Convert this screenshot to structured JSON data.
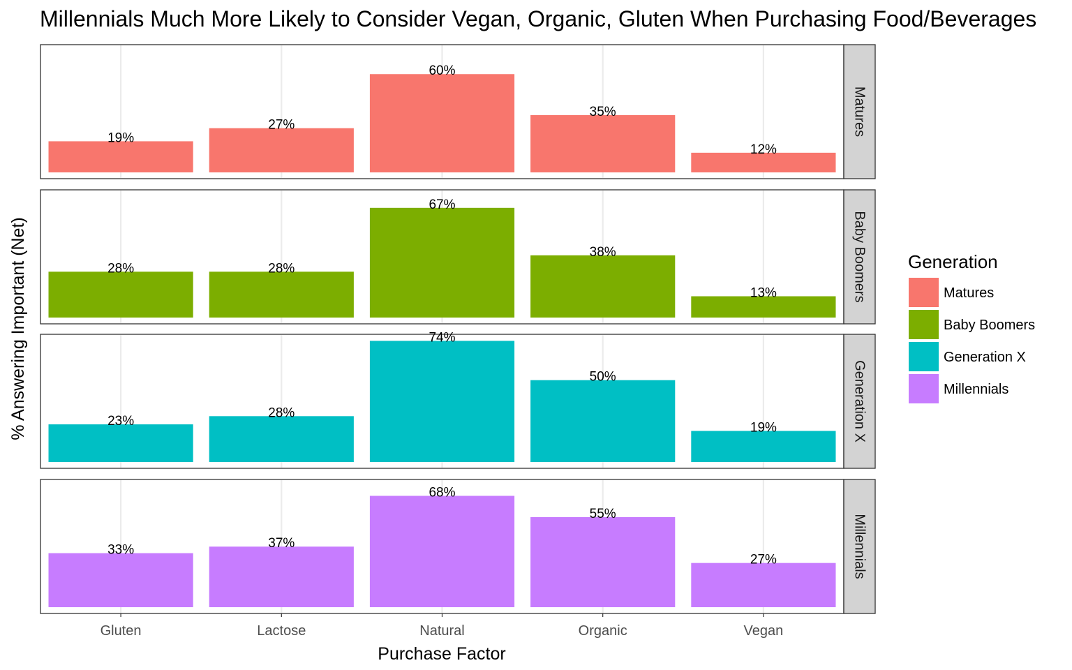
{
  "chart_data": {
    "type": "bar",
    "title": "Millennials Much More Likely to Consider Vegan, Organic, Gluten When Purchasing Food/Beverages",
    "xlabel": "Purchase Factor",
    "ylabel": "% Answering Important (Net)",
    "categories": [
      "Gluten",
      "Lactose",
      "Natural",
      "Organic",
      "Vegan"
    ],
    "ylim": [
      0,
      80
    ],
    "grid": true,
    "facet": "rows",
    "series": [
      {
        "name": "Matures",
        "color": "#F8766D",
        "values": [
          19,
          27,
          60,
          35,
          12
        ],
        "labels": [
          "19%",
          "27%",
          "60%",
          "35%",
          "12%"
        ]
      },
      {
        "name": "Baby Boomers",
        "color": "#7CAE00",
        "values": [
          28,
          28,
          67,
          38,
          13
        ],
        "labels": [
          "28%",
          "28%",
          "67%",
          "38%",
          "13%"
        ]
      },
      {
        "name": "Generation X",
        "color": "#00BFC4",
        "values": [
          23,
          28,
          74,
          50,
          19
        ],
        "labels": [
          "23%",
          "28%",
          "74%",
          "50%",
          "19%"
        ]
      },
      {
        "name": "Millennials",
        "color": "#C77CFF",
        "values": [
          33,
          37,
          68,
          55,
          27
        ],
        "labels": [
          "33%",
          "37%",
          "68%",
          "55%",
          "27%"
        ]
      }
    ],
    "legend": {
      "title": "Generation",
      "position": "right"
    }
  }
}
